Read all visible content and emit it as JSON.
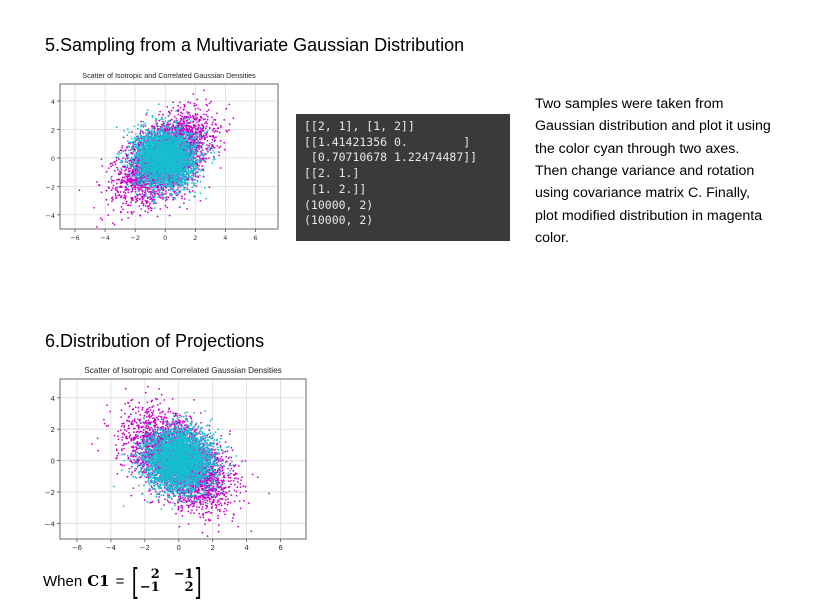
{
  "section5": {
    "heading": "5.Sampling from a Multivariate Gaussian Distribution"
  },
  "section6": {
    "heading": "6.Distribution of Projections"
  },
  "console_output": {
    "lines": [
      "[[2, 1], [1, 2]]",
      "[[1.41421356 0.        ]",
      " [0.70710678 1.22474487]]",
      "[[2. 1.]",
      " [1. 2.]]",
      "(10000, 2)",
      "(10000, 2)"
    ]
  },
  "description": "Two samples were taken from Gaussian distribution and plot it using the color cyan through two axes. Then change variance and rotation using covariance matrix C. Finally, plot modified distribution in magenta color.",
  "formula": {
    "prefix": "When",
    "symbol": "C1",
    "equals": "=",
    "matrix": [
      [
        "2",
        "−1"
      ],
      [
        "−1",
        "2"
      ]
    ]
  },
  "colors": {
    "cyan": "#17becf",
    "magenta": "#cc00cc",
    "console_bg": "#3a3a3a"
  },
  "chart_data": [
    {
      "type": "scatter",
      "title": "Scatter of Isotropic and Correlated Gaussian Densities",
      "xlim": [
        -7,
        7.5
      ],
      "ylim": [
        -5,
        5.2
      ],
      "xticks": [
        -6,
        -4,
        -2,
        0,
        2,
        4,
        6
      ],
      "yticks": [
        -4,
        -2,
        0,
        2,
        4
      ],
      "grid": true,
      "series": [
        {
          "color": "#cc00cc",
          "n_points": 10000,
          "mean": [
            0,
            0
          ],
          "covariance": [
            [
              2,
              1
            ],
            [
              1,
              2
            ]
          ]
        },
        {
          "color": "#17becf",
          "n_points": 10000,
          "mean": [
            0,
            0
          ],
          "covariance": [
            [
              1,
              0
            ],
            [
              0,
              1
            ]
          ]
        }
      ]
    },
    {
      "type": "scatter",
      "title": "Scatter of Isotropic and Correlated Gaussian Densities",
      "xlim": [
        -7,
        7.5
      ],
      "ylim": [
        -5,
        5.2
      ],
      "xticks": [
        -6,
        -4,
        -2,
        0,
        2,
        4,
        6
      ],
      "yticks": [
        -4,
        -2,
        0,
        2,
        4
      ],
      "grid": true,
      "series": [
        {
          "color": "#cc00cc",
          "n_points": 10000,
          "mean": [
            0,
            0
          ],
          "covariance": [
            [
              2,
              -1
            ],
            [
              -1,
              2
            ]
          ]
        },
        {
          "color": "#17becf",
          "n_points": 10000,
          "mean": [
            0,
            0
          ],
          "covariance": [
            [
              1,
              0
            ],
            [
              0,
              1
            ]
          ]
        }
      ]
    }
  ]
}
